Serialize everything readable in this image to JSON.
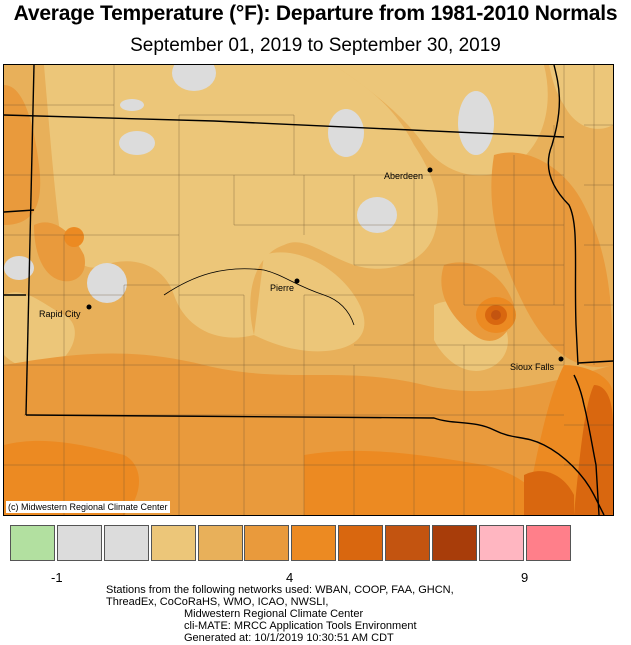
{
  "title": "Average Temperature (°F): Departure from 1981-2010 Normals",
  "subtitle": "September 01, 2019 to September 30, 2019",
  "copyright": "(c) Midwestern Regional Climate Center",
  "cities": [
    {
      "name": "Aberdeen"
    },
    {
      "name": "Pierre"
    },
    {
      "name": "Rapid City"
    },
    {
      "name": "Sioux Falls"
    }
  ],
  "legend": {
    "colors": [
      "#b2e0a0",
      "#dcdcdc",
      "#dcdcdc",
      "#ecc679",
      "#e8b05a",
      "#e99a3c",
      "#ec8a22",
      "#d9670f",
      "#c35410",
      "#a83d0a",
      "#ffb6c1",
      "#ff7f8a"
    ],
    "tick_labels": [
      "-1",
      "4",
      "9"
    ]
  },
  "footer": {
    "line1": "Stations from the following networks used: WBAN, COOP, FAA, GHCN,",
    "line2": "ThreadEx, CoCoRaHS, WMO, ICAO, NWSLI,",
    "line3": "Midwestern Regional Climate Center",
    "line4": "cli-MATE: MRCC Application Tools Environment",
    "line5": "Generated at: 10/1/2019 10:30:51 AM CDT"
  }
}
